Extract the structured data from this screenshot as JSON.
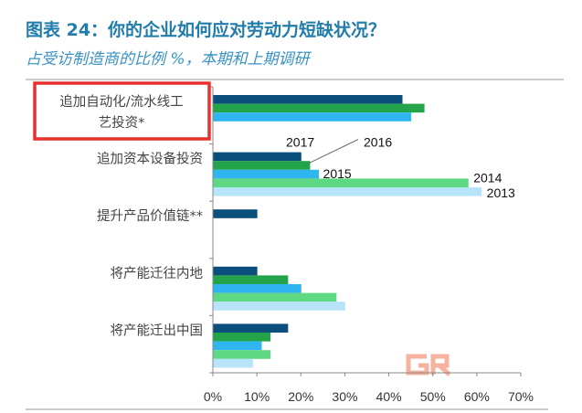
{
  "title": "图表 24：你的企业如何应对劳动力短缺状况？",
  "subtitle": "占受访制造商的比例 %，本期和上期调研",
  "chart_data": {
    "type": "bar",
    "orientation": "horizontal",
    "categories": [
      [
        "追加自动化/流水线工",
        "艺投资*"
      ],
      [
        "追加资本设备投资"
      ],
      [
        "提升产品价值链**"
      ],
      [
        "将产能迁往内地"
      ],
      [
        "将产能迁出中国"
      ]
    ],
    "highlighted_category": 0,
    "highlight_color": "#e8312f",
    "series": [
      {
        "name": "2017",
        "color": "#0b4f7c",
        "values": [
          43,
          20,
          10,
          10,
          17
        ]
      },
      {
        "name": "2016",
        "color": "#23a34a",
        "values": [
          48,
          22,
          null,
          17,
          13
        ]
      },
      {
        "name": "2015",
        "color": "#2fb5f0",
        "values": [
          45,
          24,
          null,
          20,
          11
        ]
      },
      {
        "name": "2014",
        "color": "#5fd884",
        "values": [
          null,
          58,
          null,
          28,
          13
        ]
      },
      {
        "name": "2013",
        "color": "#b8e4fa",
        "values": [
          null,
          61,
          null,
          30,
          9
        ]
      }
    ],
    "xlim": [
      0,
      70
    ],
    "xticks": [
      "0%",
      "10%",
      "20%",
      "30%",
      "40%",
      "50%",
      "60%",
      "70%"
    ],
    "legend": "inline labels on second category",
    "grid": false
  }
}
